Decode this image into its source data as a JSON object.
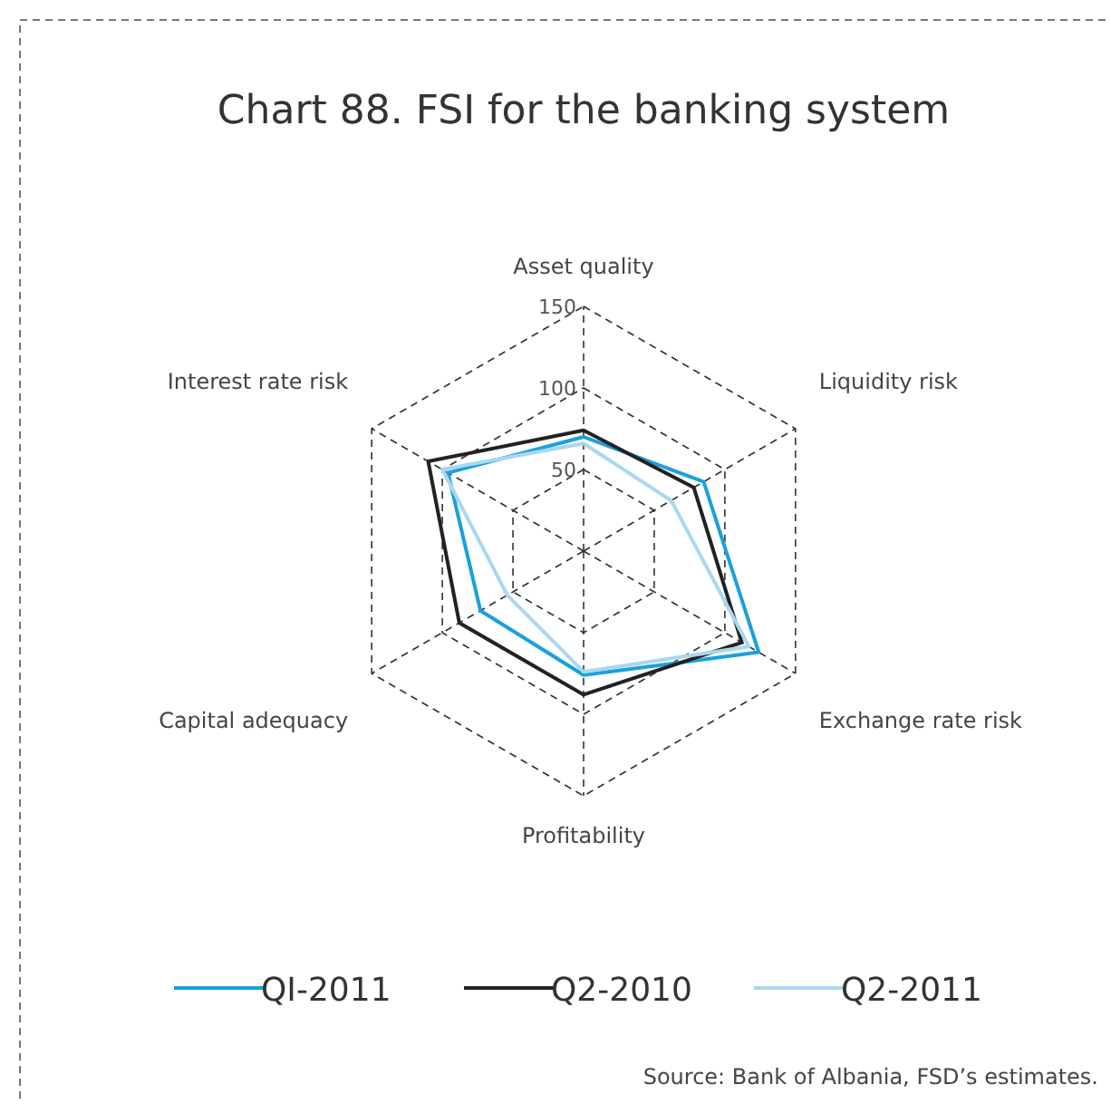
{
  "chart_data": {
    "type": "radar",
    "title": "Chart 88. FSI for the banking system",
    "categories": [
      "Asset quality",
      "Liquidity risk",
      "Exchange rate risk",
      "Profitability",
      "Capital adequacy",
      "Interest rate risk"
    ],
    "series": [
      {
        "name": "QI-2011",
        "color": "#1aa0dc",
        "values": [
          70,
          85,
          124,
          76,
          73,
          96
        ]
      },
      {
        "name": "Q2-2010",
        "color": "#222222",
        "values": [
          74,
          78,
          112,
          88,
          88,
          110
        ]
      },
      {
        "name": "Q2-2011",
        "color": "#a8d8f0",
        "values": [
          66,
          62,
          117,
          74,
          54,
          100
        ]
      }
    ],
    "ylim": [
      0,
      150
    ],
    "yticks": [
      50,
      100,
      150
    ],
    "grid": true,
    "legend": "bottom",
    "line_style": "solid",
    "annotations": [
      "Source: Bank of Albania, FSD’s estimates."
    ]
  }
}
